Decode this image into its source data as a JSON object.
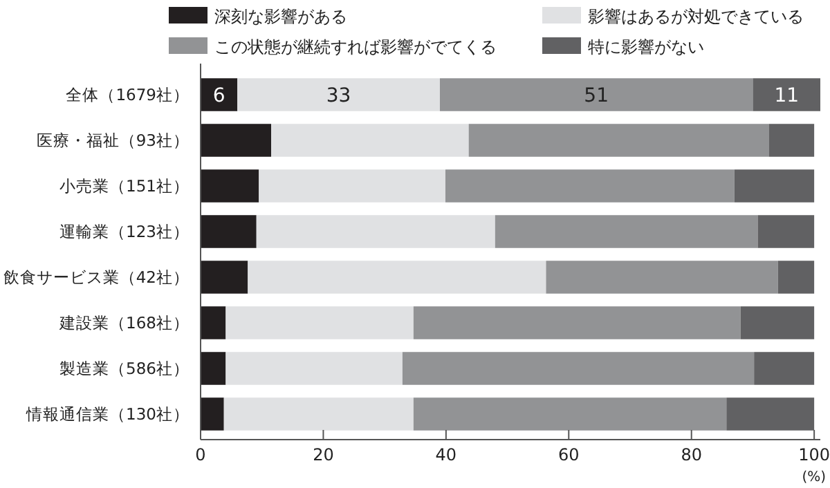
{
  "chart_data": {
    "type": "bar",
    "orientation": "horizontal",
    "stacked": true,
    "legend": "top",
    "grid": false,
    "categories": [
      "全体（1679社）",
      "医療・福祉（93社）",
      "小売業（151社）",
      "運輸業（123社）",
      "飲食サービス業（42社）",
      "建設業（168社）",
      "製造業（586社）",
      "情報通信業（130社）"
    ],
    "xlabel": "(%)",
    "xlim": [
      0,
      101
    ],
    "xticks": [
      0,
      20,
      40,
      60,
      80,
      100
    ],
    "series": [
      {
        "name": "深刻な影響がある",
        "color": "#231f20",
        "values": [
          6,
          11.5,
          9.5,
          9.1,
          7.7,
          4.1,
          4.1,
          3.8
        ],
        "value_labels": [
          "6",
          null,
          null,
          null,
          null,
          null,
          null,
          null
        ]
      },
      {
        "name": "影響はあるが対処できている",
        "color": "#e0e1e3",
        "values": [
          33,
          32.2,
          30.4,
          38.9,
          48.6,
          30.6,
          28.8,
          30.9
        ],
        "value_labels": [
          "33",
          null,
          null,
          null,
          null,
          null,
          null,
          null
        ]
      },
      {
        "name": "この状態が継続すれば影響がでてくる",
        "color": "#929395",
        "values": [
          51,
          48.9,
          47.1,
          42.8,
          37.8,
          53.3,
          57.3,
          51.0
        ],
        "value_labels": [
          "51",
          null,
          null,
          null,
          null,
          null,
          null,
          null
        ]
      },
      {
        "name": "特に影響がない",
        "color": "#616163",
        "values": [
          11,
          7.4,
          13.0,
          9.2,
          5.9,
          12.0,
          9.8,
          14.3
        ],
        "value_labels": [
          "11",
          null,
          null,
          null,
          null,
          null,
          null,
          null
        ]
      }
    ]
  }
}
